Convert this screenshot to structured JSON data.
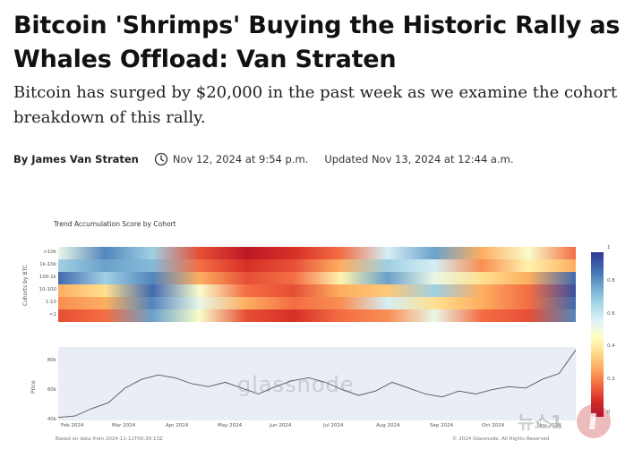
{
  "article": {
    "headline": "Bitcoin 'Shrimps' Buying the Historic Rally as Whales Offload: Van Straten",
    "dek": "Bitcoin has surged by $20,000 in the past week as we examine the cohort breakdown of this rally.",
    "author": "By James Van Straten",
    "published": "Nov 12, 2024 at 9:54 p.m.",
    "updated": "Updated Nov 13, 2024 at 12:44 a.m."
  },
  "icons": {
    "clock": "clock-icon"
  },
  "figure": {
    "title": "Trend Accumulation Score by Cohort",
    "cohort_axis_label": "Cohorts by BTC",
    "price_axis_label": "Price",
    "footer_left": "Based on data from 2024-11-12T00:30:13Z",
    "footer_right": "© 2024 Glassnode. All Rights Reserved",
    "watermark": "glassnode",
    "news_watermark": "뉴스1"
  },
  "chart_data": {
    "type": "heatmap",
    "title": "Trend Accumulation Score by Cohort",
    "ylabel": "Cohorts by BTC",
    "cohorts": [
      ">10k",
      "1k-10k",
      "100-1k",
      "10-100",
      "1-10",
      "<1"
    ],
    "x_ticks": [
      "Feb 2024",
      "Mar 2024",
      "Apr 2024",
      "May 2024",
      "Jun 2024",
      "Jul 2024",
      "Aug 2024",
      "Sep 2024",
      "Oct 2024",
      "Nov 2024"
    ],
    "colorbar": {
      "min": 0,
      "max": 1,
      "ticks": [
        "1",
        "0.8",
        "0.6",
        "0.4",
        "0.2",
        "0"
      ]
    },
    "segments": 12,
    "scores": [
      [
        0.55,
        0.85,
        0.7,
        0.15,
        0.05,
        0.1,
        0.2,
        0.6,
        0.8,
        0.3,
        0.5,
        0.2
      ],
      [
        0.7,
        0.8,
        0.75,
        0.2,
        0.1,
        0.15,
        0.3,
        0.7,
        0.6,
        0.25,
        0.45,
        0.3
      ],
      [
        0.9,
        0.7,
        0.85,
        0.3,
        0.15,
        0.2,
        0.45,
        0.8,
        0.55,
        0.4,
        0.3,
        0.9
      ],
      [
        0.3,
        0.4,
        0.9,
        0.5,
        0.2,
        0.15,
        0.3,
        0.35,
        0.7,
        0.3,
        0.2,
        0.95
      ],
      [
        0.25,
        0.3,
        0.85,
        0.55,
        0.3,
        0.2,
        0.25,
        0.6,
        0.4,
        0.3,
        0.2,
        0.9
      ],
      [
        0.15,
        0.2,
        0.8,
        0.5,
        0.15,
        0.1,
        0.2,
        0.25,
        0.55,
        0.2,
        0.15,
        0.85
      ]
    ],
    "price": {
      "ylabel": "Price",
      "y_ticks": [
        "80k",
        "60k",
        "40k"
      ],
      "ylim": [
        40000,
        90000
      ],
      "series": [
        42000,
        43000,
        48000,
        52000,
        62000,
        68000,
        71000,
        69000,
        65000,
        63000,
        66000,
        62000,
        58000,
        63000,
        67000,
        69000,
        66000,
        61000,
        57000,
        60000,
        66000,
        62000,
        58000,
        56000,
        60000,
        58000,
        61000,
        63000,
        62000,
        68000,
        72000,
        88000
      ]
    }
  }
}
